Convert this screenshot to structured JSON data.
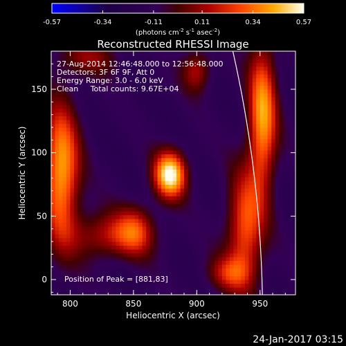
{
  "colors": {
    "background": "#000000",
    "text": "#ffffff",
    "limb": "#ffffff"
  },
  "colorbar": {
    "ticks": [
      "-0.57",
      "-0.34",
      "-0.11",
      "0.11",
      "0.34",
      "0.57"
    ],
    "range": [
      -0.57,
      0.57
    ],
    "unit_main": "(photons cm",
    "unit_sup1": "-2",
    "unit_mid": " s",
    "unit_sup2": "-1",
    "unit_end": " asec",
    "unit_sup3": "-2",
    "unit_close": ")"
  },
  "chart_data": {
    "type": "heatmap",
    "title": "Reconstructed RHESSI Image",
    "xlabel": "Heliocentric X (arcsec)",
    "ylabel": "Heliocentric Y (arcsec)",
    "xlim": [
      785,
      978
    ],
    "ylim": [
      -12,
      180
    ],
    "xticks": [
      800,
      850,
      900,
      950
    ],
    "yticks": [
      0,
      50,
      100,
      150
    ],
    "info_lines": [
      "27-Aug-2014 12:46:48.000 to 12:56:48.000",
      "Detectors: 3F 6F 9F, Att 0",
      "Energy Range: 3.0 - 6.0 keV",
      "Clean     Total counts: 9.67E+04"
    ],
    "peak_label": "Position of Peak = [881,83]",
    "peak": {
      "x": 881,
      "y": 83
    },
    "sources": [
      {
        "x": 879,
        "y": 83,
        "sx": 9,
        "sy": 13,
        "amp": 1.0
      },
      {
        "x": 793,
        "y": 85,
        "sx": 10,
        "sy": 38,
        "amp": 0.82
      },
      {
        "x": 852,
        "y": 40,
        "sx": 10,
        "sy": 14,
        "amp": 0.35
      },
      {
        "x": 832,
        "y": 35,
        "sx": 22,
        "sy": 13,
        "amp": 0.45
      },
      {
        "x": 900,
        "y": 165,
        "sx": 8,
        "sy": 12,
        "amp": 0.42
      },
      {
        "x": 952,
        "y": 128,
        "sx": 8,
        "sy": 42,
        "amp": 0.78
      },
      {
        "x": 938,
        "y": 40,
        "sx": 10,
        "sy": 32,
        "amp": 0.62
      },
      {
        "x": 925,
        "y": 5,
        "sx": 12,
        "sy": 10,
        "amp": 0.4
      },
      {
        "x": 815,
        "y": 175,
        "sx": 18,
        "sy": 10,
        "amp": 0.3
      }
    ],
    "background_level": -0.15
  },
  "footer": {
    "date": "24-Jan-2017 03:15"
  }
}
